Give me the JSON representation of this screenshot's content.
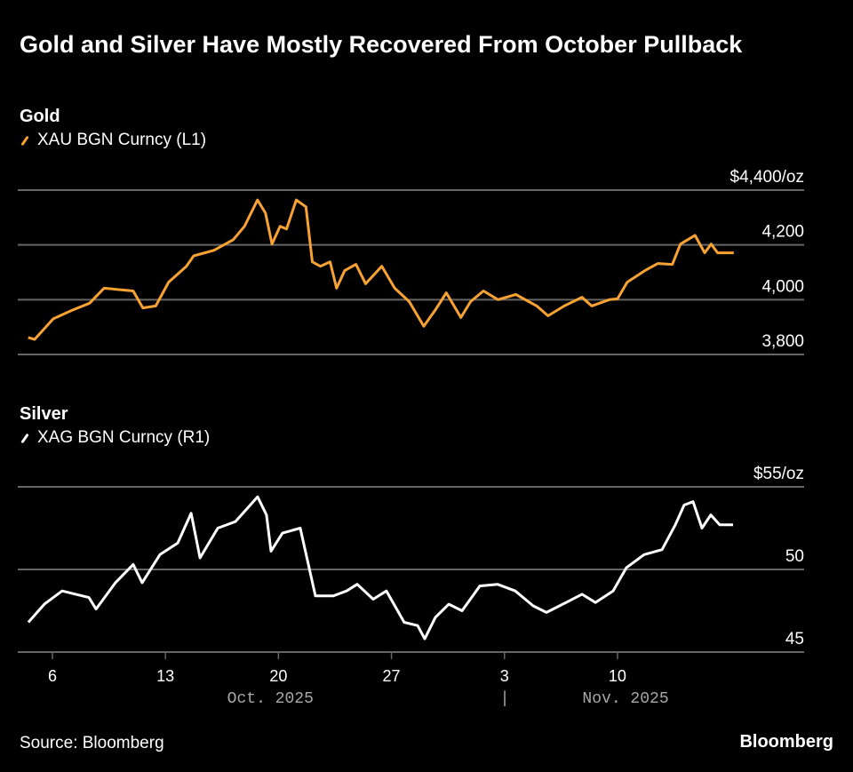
{
  "colors": {
    "gold": "#f7a233",
    "silver": "#ffffff",
    "grid": "#666666",
    "axis_label": "#a8a8a8"
  },
  "source": "Source: Bloomberg",
  "brand": "Bloomberg",
  "chart_data": [
    {
      "type": "line",
      "title": "Gold and Silver Have Mostly Recovered From October Pullback",
      "panel_title": "Gold",
      "legend": "XAU BGN Curncy (L1)",
      "ylim": [
        3800,
        4400
      ],
      "yticks": [
        3800,
        4000,
        4200,
        4400
      ],
      "ytick_labels": [
        "3,800",
        "4,000",
        "4,200",
        "$4,400/oz"
      ],
      "x_units": "day of Oct. 2025 (32 = Nov. 1)",
      "x": [
        4.5,
        4.9,
        6.05,
        7.2,
        8.3,
        9.2,
        11,
        11.6,
        12.4,
        13.2,
        14.3,
        14.75,
        16,
        17.2,
        17.9,
        18.7,
        19.2,
        19.6,
        20.1,
        20.5,
        21.1,
        21.7,
        22.1,
        22.6,
        23.2,
        23.6,
        24.1,
        24.8,
        25.4,
        26.4,
        27.2,
        28.1,
        29,
        29.7,
        30.4,
        31.3,
        31.9,
        32.7,
        33.6,
        34.7,
        36,
        36.7,
        37.7,
        38.8,
        39.4,
        40.5,
        41,
        41.6,
        42.7,
        43.5,
        44.4,
        44.9,
        45.8,
        46.4,
        46.8,
        47.2,
        48.2
      ],
      "values": [
        3862,
        3855,
        3930,
        3961,
        3987,
        4042,
        4032,
        3970,
        3977,
        4064,
        4122,
        4160,
        4180,
        4219,
        4268,
        4364,
        4316,
        4203,
        4268,
        4258,
        4364,
        4339,
        4138,
        4122,
        4138,
        4042,
        4106,
        4129,
        4058,
        4122,
        4042,
        3993,
        3903,
        3961,
        4025,
        3935,
        3993,
        4032,
        4000,
        4019,
        3977,
        3941,
        3977,
        4009,
        3977,
        4000,
        4003,
        4064,
        4106,
        4132,
        4129,
        4203,
        4235,
        4171,
        4203,
        4171,
        4171
      ]
    },
    {
      "type": "line",
      "panel_title": "Silver",
      "legend": "XAG BGN Curncy (R1)",
      "ylim": [
        45,
        55
      ],
      "yticks": [
        45,
        50,
        55
      ],
      "ytick_labels": [
        "45",
        "50",
        "$55/oz"
      ],
      "x": [
        4.51,
        5.5,
        6.6,
        8.26,
        8.7,
        9.9,
        11.0,
        11.56,
        12.66,
        13.76,
        14.59,
        15.14,
        16.24,
        17.34,
        18.71,
        19.26,
        19.54,
        20.25,
        21.35,
        21.9,
        22.29,
        23.39,
        24.22,
        24.88,
        25.87,
        26.69,
        27.79,
        28.62,
        29.06,
        29.72,
        30.55,
        31.37,
        32.47,
        33.57,
        34.67,
        35.77,
        36.6,
        37.42,
        38.8,
        39.63,
        40.73,
        41.55,
        42.65,
        43.76,
        44.58,
        45.13,
        45.68,
        46.23,
        46.78,
        47.33,
        48.16
      ],
      "values": [
        46.8,
        47.9,
        48.7,
        48.3,
        47.6,
        49.2,
        50.3,
        49.2,
        50.9,
        51.6,
        53.4,
        50.7,
        52.5,
        52.9,
        54.4,
        53.3,
        51.1,
        52.2,
        52.5,
        50.1,
        48.4,
        48.4,
        48.7,
        49.1,
        48.2,
        48.7,
        46.8,
        46.6,
        45.8,
        47.1,
        47.9,
        47.5,
        49.0,
        49.1,
        48.7,
        47.8,
        47.4,
        47.8,
        48.5,
        48.0,
        48.7,
        50.1,
        50.9,
        51.2,
        52.7,
        53.9,
        54.1,
        52.5,
        53.3,
        52.7,
        52.7
      ]
    }
  ],
  "xaxis": {
    "ticks": [
      {
        "day": 6,
        "label": "6"
      },
      {
        "day": 13,
        "label": "13"
      },
      {
        "day": 20,
        "label": "20"
      },
      {
        "day": 27,
        "label": "27"
      },
      {
        "day": 34,
        "label": "3"
      },
      {
        "day": 41,
        "label": "10"
      }
    ],
    "months": [
      {
        "day": 19.5,
        "label": "Oct. 2025"
      },
      {
        "day": 41.5,
        "label": "Nov. 2025"
      }
    ],
    "separator": "|"
  }
}
